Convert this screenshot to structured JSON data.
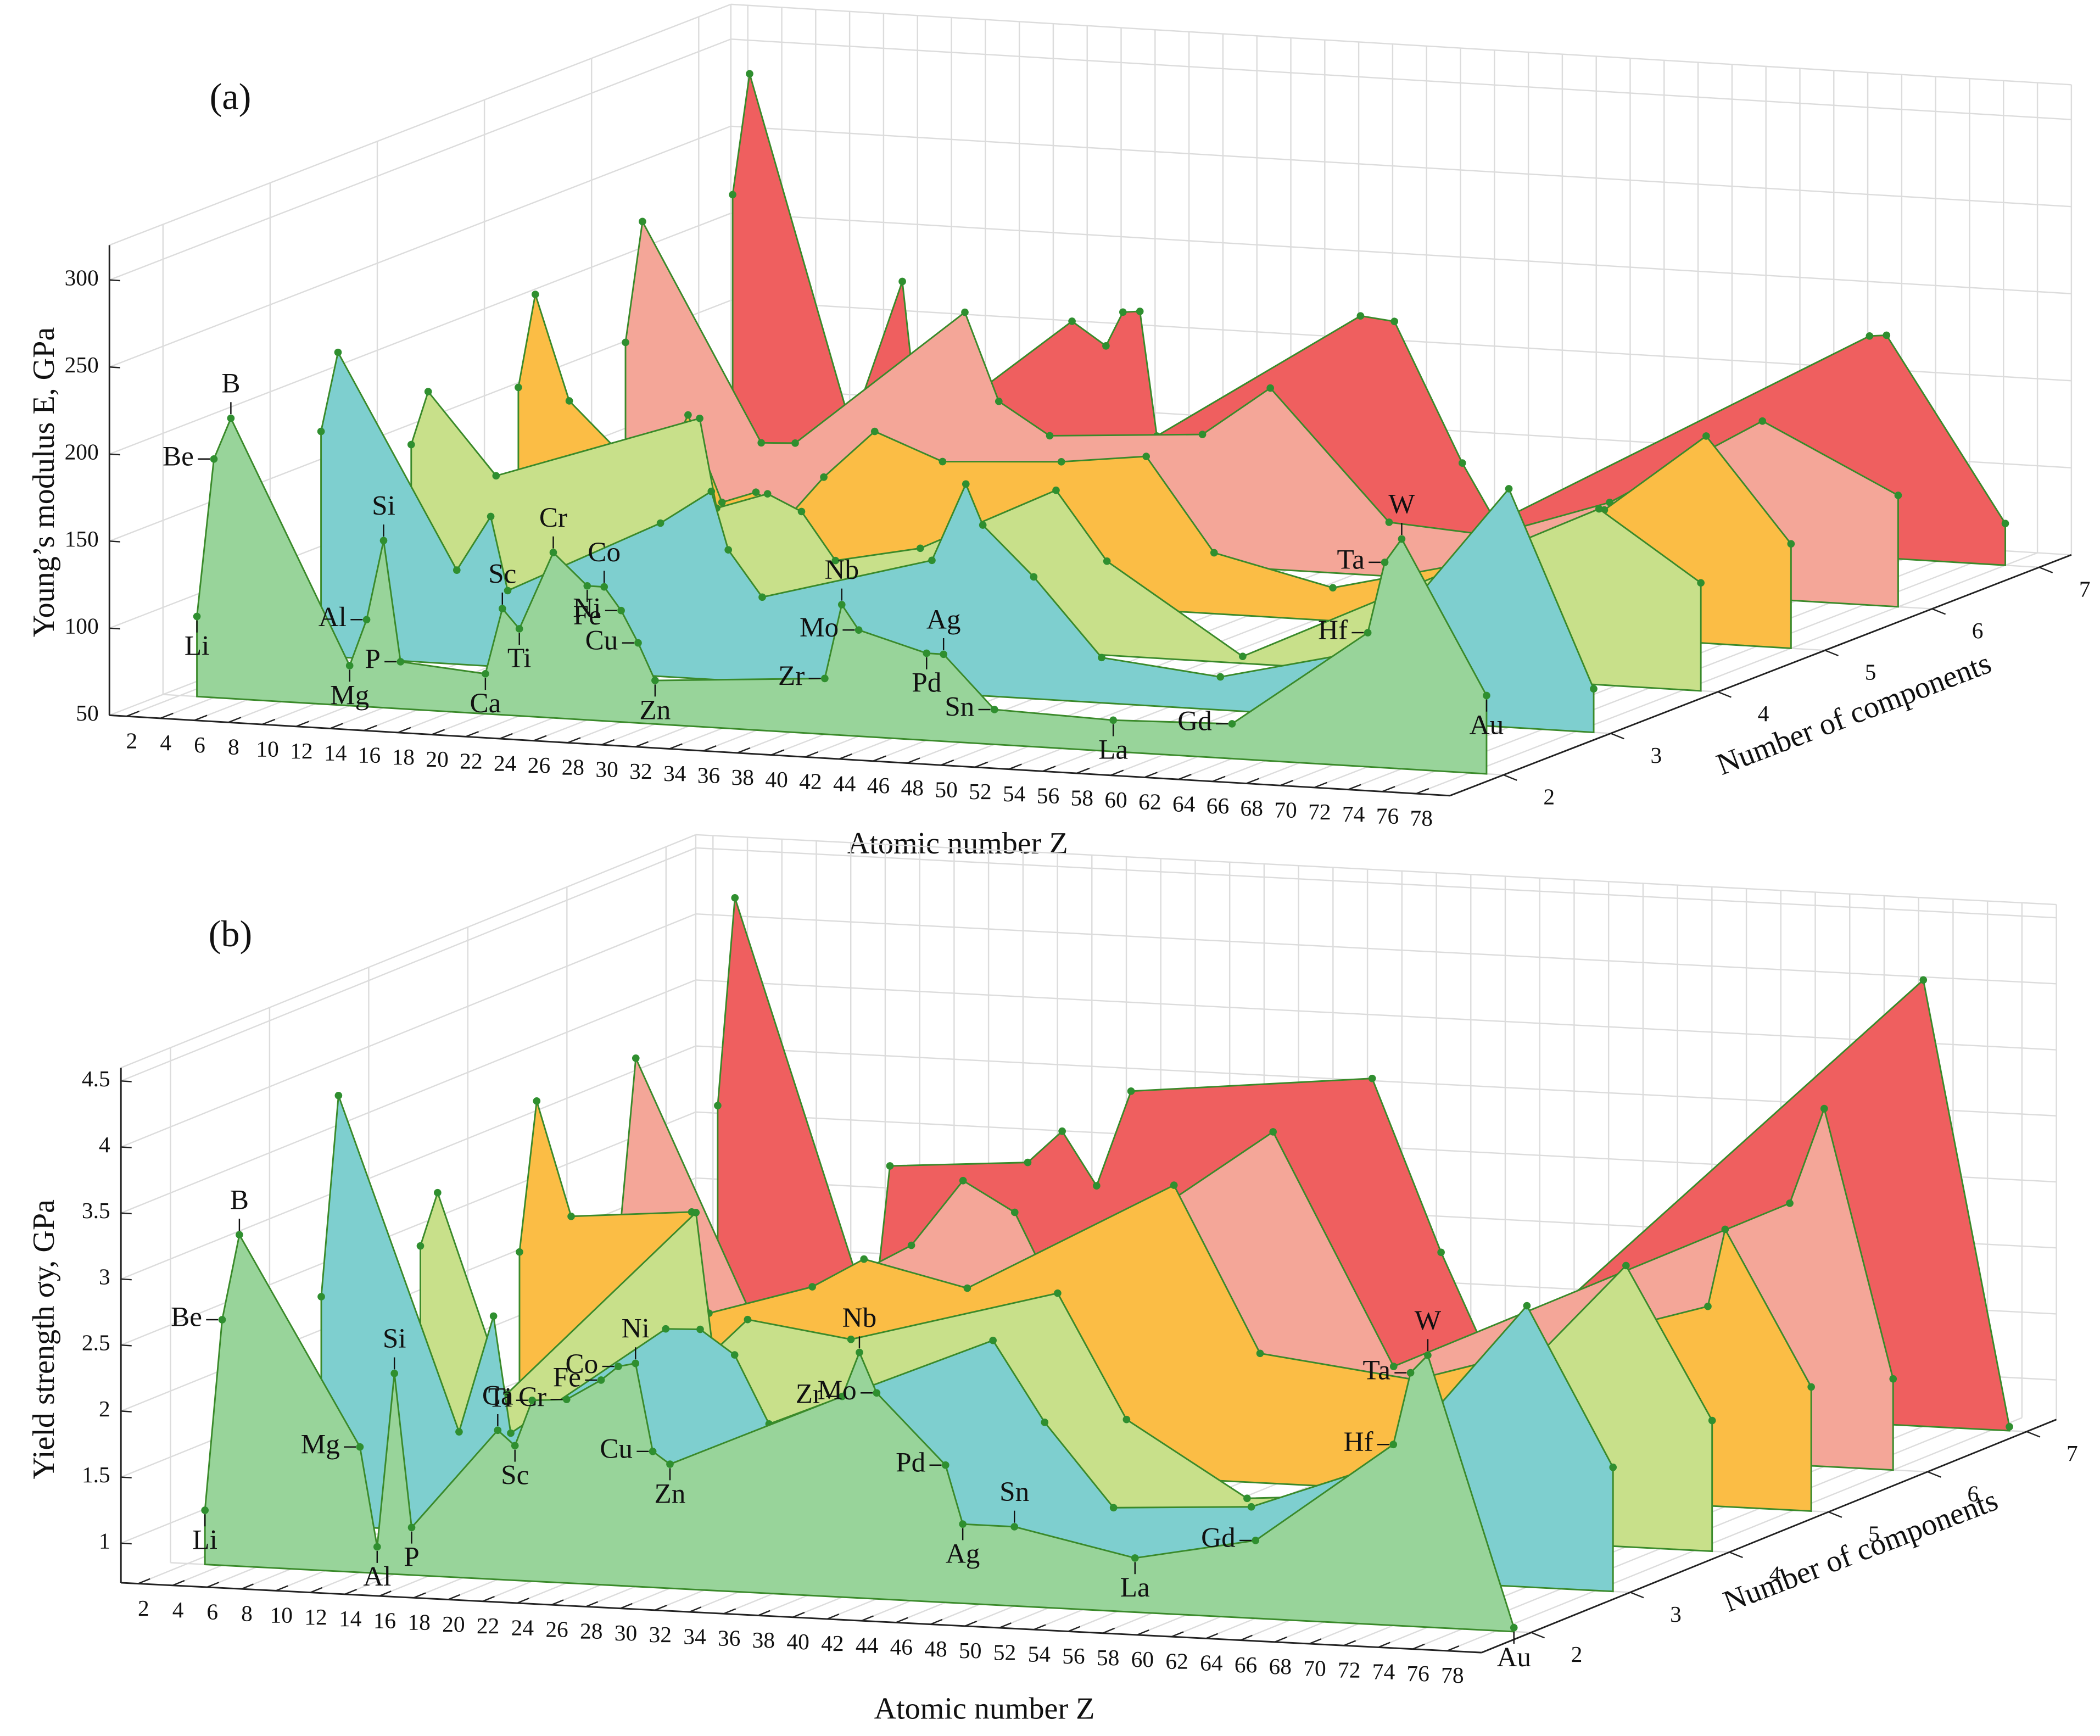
{
  "chart_data": [
    {
      "type": "waterfall",
      "title": "(a)",
      "xlabel": "Atomic number Z",
      "ylabel": "Young’s modulus E, GPa",
      "zlabel": "Number of components",
      "xlim": [
        1,
        80
      ],
      "ylim": [
        50,
        320
      ],
      "zlim": [
        1.5,
        7.3
      ],
      "xticks": [
        2,
        4,
        6,
        8,
        10,
        12,
        14,
        16,
        18,
        20,
        22,
        24,
        26,
        28,
        30,
        32,
        34,
        36,
        38,
        40,
        42,
        44,
        46,
        48,
        50,
        52,
        54,
        56,
        58,
        60,
        62,
        64,
        66,
        68,
        70,
        72,
        74,
        76,
        78
      ],
      "yticks": [
        50,
        100,
        150,
        200,
        250,
        300
      ],
      "zticks": [
        2,
        3,
        4,
        5,
        6,
        7
      ],
      "grid": true,
      "series": [
        {
          "z": 2,
          "color": "#98d49a",
          "x": [
            3,
            4,
            5,
            12,
            13,
            14,
            15,
            20,
            21,
            22,
            24,
            26,
            27,
            28,
            29,
            30,
            40,
            41,
            42,
            46,
            47,
            50,
            57,
            64,
            72,
            73,
            74,
            79
          ],
          "values": [
            96,
            187,
            211,
            73,
            100,
            146,
            77,
            73,
            111,
            100,
            145,
            127,
            127,
            114,
            96,
            75,
            82,
            125,
            111,
            100,
            100,
            70,
            68,
            70,
            127,
            168,
            182,
            95
          ],
          "labels": [
            "Li",
            "Be",
            "B",
            "Mg",
            "Al",
            "Si",
            "P",
            "Ca",
            "Sc",
            "Ti",
            "Cr",
            "Fe",
            "Co",
            "Ni",
            "Cu",
            "Zn",
            "Zr",
            "Nb",
            "Mo",
            "Pd",
            "Ag",
            "Sn",
            "La",
            "Gd",
            "Hf",
            "Ta",
            "W",
            "Au"
          ]
        },
        {
          "z": 3,
          "color": "#7ecfcf",
          "x": [
            4,
            5,
            12,
            14,
            15,
            24,
            27,
            28,
            30,
            40,
            42,
            43,
            46,
            50,
            57,
            66,
            74,
            79
          ],
          "values": [
            179,
            225,
            104,
            136,
            94,
            138,
            158,
            125,
            99,
            126,
            171,
            148,
            120,
            76,
            69,
            90,
            187,
            75
          ]
        },
        {
          "z": 4,
          "color": "#c8e08a",
          "x": [
            3,
            4,
            8,
            20,
            21,
            24,
            26,
            28,
            33,
            41,
            44,
            52,
            73,
            79
          ],
          "values": [
            147,
            178,
            132,
            172,
            121,
            131,
            122,
            95,
            105,
            143,
            104,
            54,
            151,
            112
          ]
        },
        {
          "z": 5,
          "color": "#fbbd45",
          "x": [
            3,
            4,
            6,
            11,
            13,
            15,
            17,
            19,
            21,
            24,
            28,
            35,
            40,
            44,
            51,
            59,
            67,
            73,
            78
          ],
          "values": [
            156,
            210,
            150,
            103,
            146,
            97,
            104,
            92,
            115,
            143,
            128,
            132,
            138,
            85,
            69,
            88,
            123,
            169,
            110
          ]
        },
        {
          "z": 6,
          "color": "#f4a698",
          "x": [
            3,
            4,
            11,
            13,
            23,
            25,
            28,
            37,
            41,
            48,
            54,
            61,
            70,
            78
          ],
          "values": [
            158,
            228,
            105,
            106,
            187,
            137,
            119,
            125,
            154,
            81,
            77,
            100,
            152,
            114
          ]
        },
        {
          "z": 7,
          "color": "#ef5f5f",
          "x": [
            3,
            4,
            10,
            13,
            14,
            23,
            25,
            26,
            27,
            28,
            40,
            42,
            46,
            48,
            70,
            71,
            78
          ],
          "values": [
            219,
            289,
            89,
            175,
            87,
            158,
            145,
            165,
            166,
            95,
            171,
            169,
            90,
            57,
            177,
            178,
            74
          ]
        }
      ]
    },
    {
      "type": "waterfall",
      "title": "(b)",
      "xlabel": "Atomic number Z",
      "ylabel": "Yield strength σy, GPa",
      "zlabel": "Number of components",
      "xlim": [
        1,
        80
      ],
      "ylim": [
        0.7,
        4.6
      ],
      "zlim": [
        1.5,
        7.3
      ],
      "xticks": [
        2,
        4,
        6,
        8,
        10,
        12,
        14,
        16,
        18,
        20,
        22,
        24,
        26,
        28,
        30,
        32,
        34,
        36,
        38,
        40,
        42,
        44,
        46,
        48,
        50,
        52,
        54,
        56,
        58,
        60,
        62,
        64,
        66,
        68,
        70,
        72,
        74,
        76,
        78
      ],
      "yticks": [
        1,
        1.5,
        2,
        2.5,
        3,
        3.5,
        4,
        4.5
      ],
      "zticks": [
        2,
        3,
        4,
        5,
        6,
        7
      ],
      "grid": true,
      "series": [
        {
          "z": 2,
          "color": "#98d49a",
          "x": [
            3,
            4,
            5,
            12,
            13,
            14,
            15,
            20,
            21,
            22,
            24,
            26,
            27,
            28,
            29,
            30,
            40,
            41,
            42,
            46,
            47,
            50,
            57,
            64,
            72,
            73,
            74,
            79
          ],
          "values": [
            1.11,
            2.56,
            3.21,
            1.65,
            0.9,
            2.22,
            1.06,
            1.83,
            1.72,
            2.07,
            2.09,
            2.25,
            2.36,
            2.39,
            1.73,
            1.64,
            2.22,
            2.56,
            2.26,
            1.74,
            1.3,
            1.3,
            1.11,
            1.29,
            2.07,
            2.62,
            2.76,
            0.73
          ],
          "labels": [
            "Li",
            "Be",
            "B",
            "Mg",
            "Al",
            "Si",
            "P",
            "Ca",
            "Sc",
            "Ti",
            "Cr",
            "Fe",
            "Co",
            "Ni",
            "Cu",
            "Zn",
            "Zr",
            "Nb",
            "Mo",
            "Pd",
            "Ag",
            "Sn",
            "La",
            "Gd",
            "Hf",
            "Ta",
            "W",
            "Au"
          ]
        },
        {
          "z": 3,
          "color": "#7ecfcf",
          "x": [
            4,
            5,
            12,
            14,
            15,
            24,
            26,
            28,
            30,
            43,
            46,
            50,
            58,
            66,
            74,
            79
          ],
          "values": [
            2.43,
            3.96,
            1.46,
            2.35,
            1.47,
            2.32,
            2.33,
            2.15,
            1.64,
            2.36,
            1.76,
            1.14,
            1.2,
            1.59,
            2.83,
            1.64
          ]
        },
        {
          "z": 4,
          "color": "#c8e08a",
          "x": [
            4,
            5,
            9,
            20,
            21,
            23,
            29,
            41,
            45,
            52,
            61,
            74,
            79
          ],
          "values": [
            2.51,
            2.92,
            1.42,
            2.87,
            1.82,
            2.08,
            1.97,
            2.4,
            1.47,
            0.92,
            1.01,
            2.83,
            1.69
          ]
        },
        {
          "z": 5,
          "color": "#fbbd45",
          "x": [
            4,
            5,
            7,
            14,
            15,
            21,
            24,
            30,
            42,
            47,
            56,
            73,
            74,
            79
          ],
          "values": [
            2.16,
            3.31,
            2.45,
            2.53,
            1.77,
            2.01,
            2.24,
            2.06,
            2.92,
            1.68,
            1.54,
            2.21,
            2.8,
            1.64
          ]
        },
        {
          "z": 6,
          "color": "#f4a698",
          "x": [
            4,
            5,
            12,
            21,
            24,
            27,
            29,
            42,
            49,
            72,
            74,
            78
          ],
          "values": [
            1.9,
            3.33,
            1.35,
            2.02,
            2.53,
            2.31,
            1.79,
            3.02,
            1.29,
            2.68,
            3.41,
            1.39
          ]
        },
        {
          "z": 7,
          "color": "#ef5f5f",
          "x": [
            4,
            5,
            13,
            14,
            22,
            24,
            26,
            28,
            42,
            46,
            49,
            74,
            79
          ],
          "values": [
            2.66,
            4.24,
            1.05,
            2.27,
            2.35,
            2.6,
            2.2,
            2.93,
            3.12,
            1.83,
            0.98,
            4.08,
            0.73
          ]
        }
      ]
    }
  ]
}
